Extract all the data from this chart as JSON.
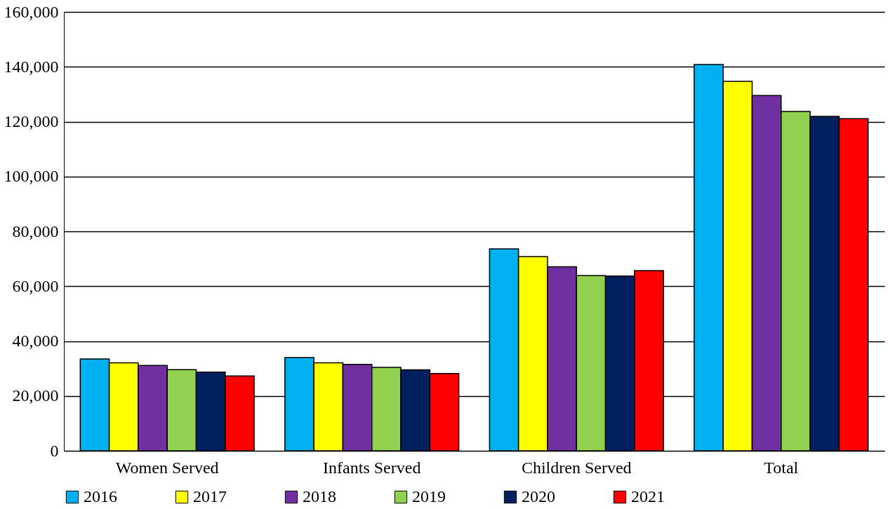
{
  "chart_data": {
    "type": "bar",
    "categories": [
      "Women Served",
      "Infants Served",
      "Children Served",
      "Total"
    ],
    "series": [
      {
        "name": "2016",
        "color": "#00b0f0",
        "values": [
          33500,
          34000,
          73600,
          140800
        ]
      },
      {
        "name": "2017",
        "color": "#ffff00",
        "values": [
          32100,
          32100,
          70800,
          134700
        ]
      },
      {
        "name": "2018",
        "color": "#7030a0",
        "values": [
          31100,
          31500,
          67100,
          129500
        ]
      },
      {
        "name": "2019",
        "color": "#92d050",
        "values": [
          29600,
          30400,
          63900,
          123700
        ]
      },
      {
        "name": "2020",
        "color": "#002060",
        "values": [
          28700,
          29500,
          63700,
          121900
        ]
      },
      {
        "name": "2021",
        "color": "#ff0000",
        "values": [
          27300,
          28200,
          65700,
          121100
        ]
      }
    ],
    "ylim": [
      0,
      160000
    ],
    "yticks": [
      {
        "value": 0,
        "label": "0"
      },
      {
        "value": 20000,
        "label": "20,000"
      },
      {
        "value": 40000,
        "label": "40,000"
      },
      {
        "value": 60000,
        "label": "60,000"
      },
      {
        "value": 80000,
        "label": "80,000"
      },
      {
        "value": 100000,
        "label": "100,000"
      },
      {
        "value": 120000,
        "label": "120,000"
      },
      {
        "value": 140000,
        "label": "140,000"
      },
      {
        "value": 160000,
        "label": "160,000"
      }
    ],
    "grid": "y",
    "legend": "bottom"
  }
}
